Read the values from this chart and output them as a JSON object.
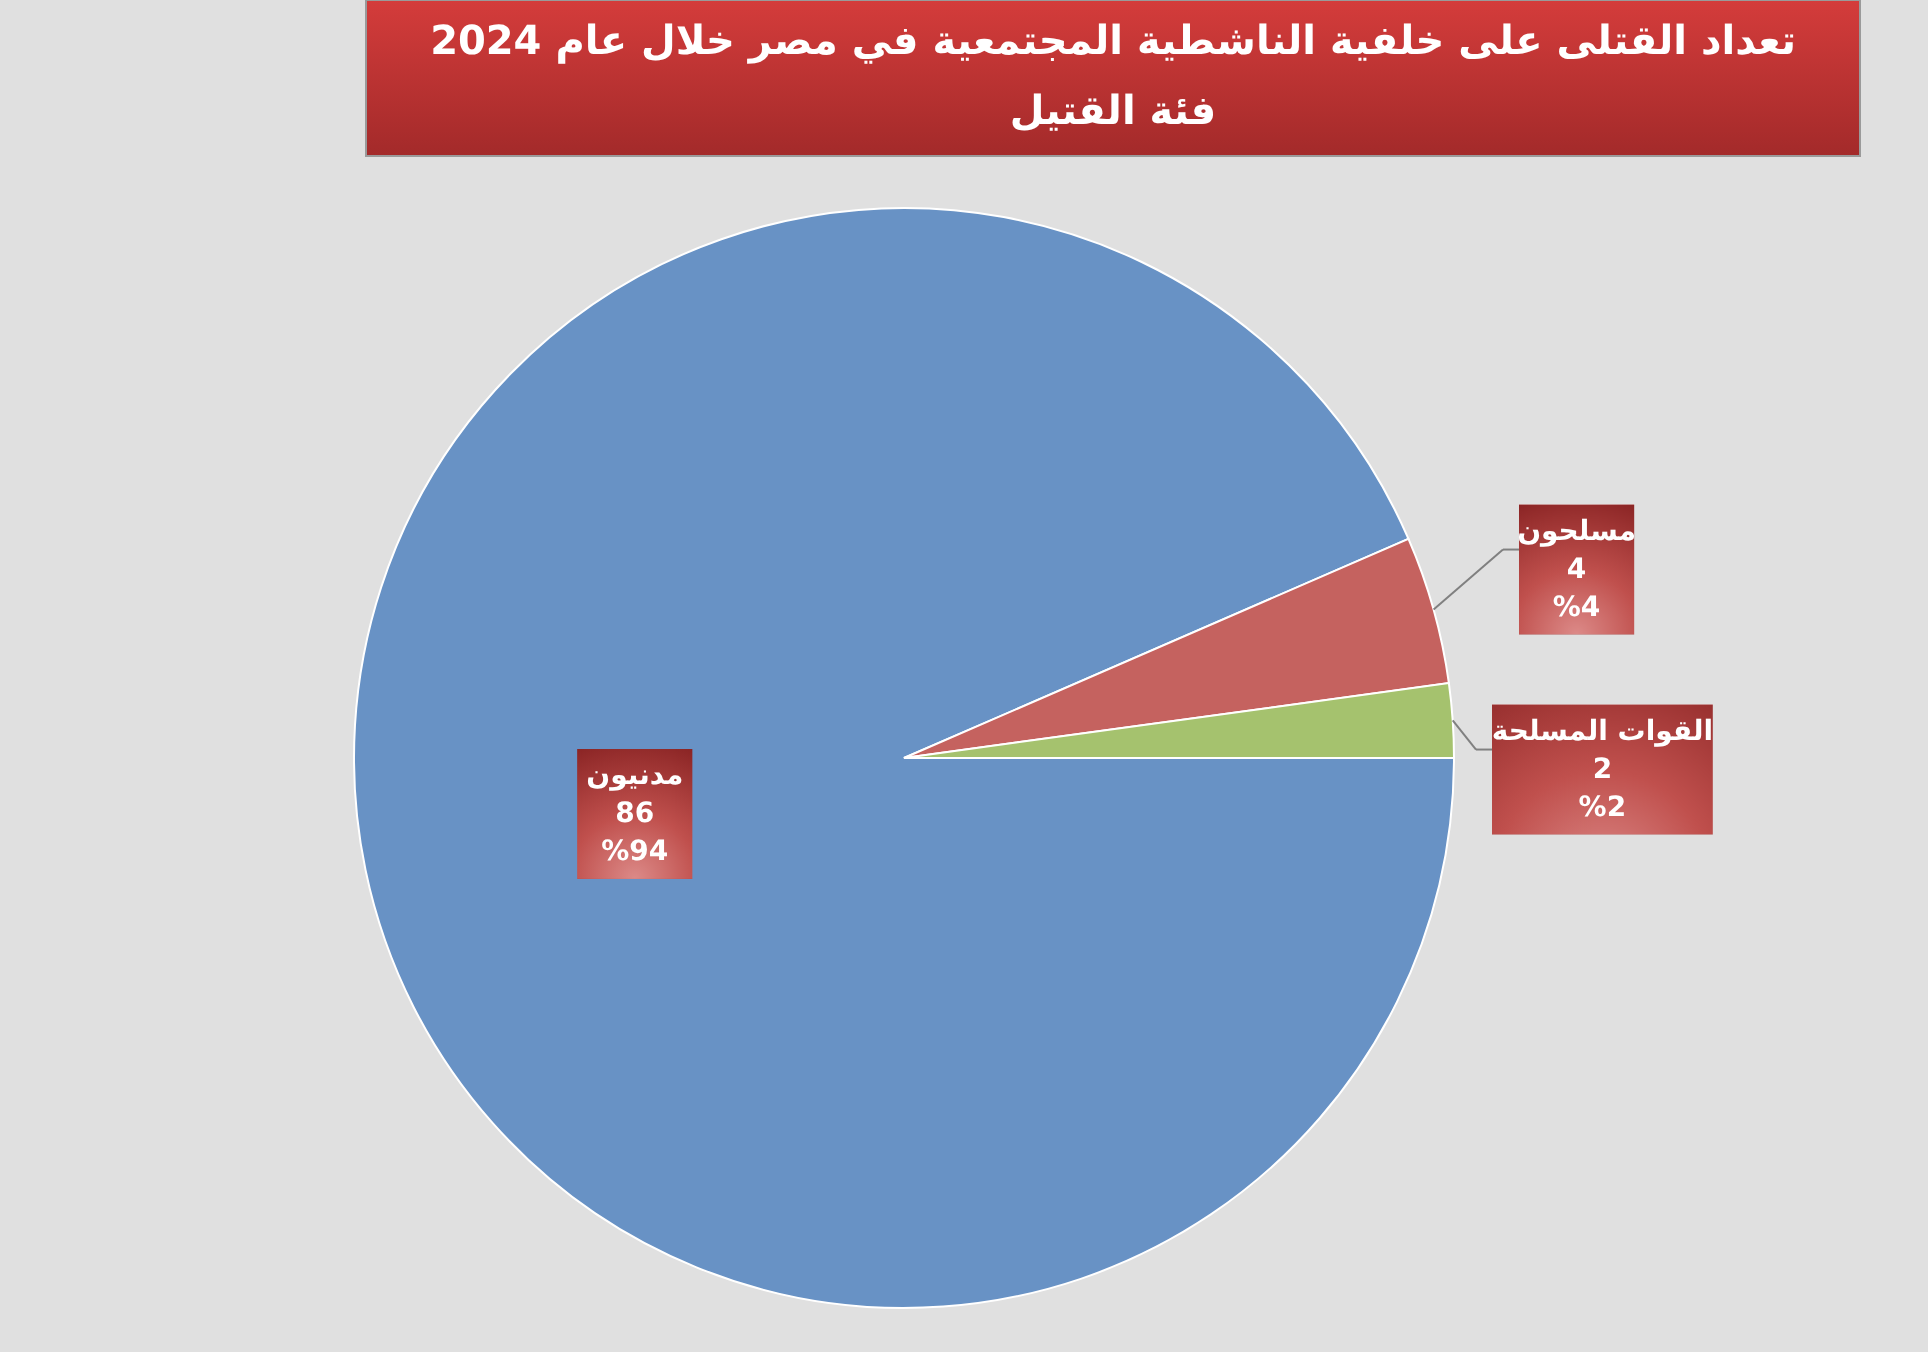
{
  "chart_data": {
    "type": "pie",
    "title": "تعداد القتلى على خلفية الناشطية المجتمعية في مصر خلال عام 2024",
    "subtitle": "فئة القتيل",
    "categories": [
      "مدنيون",
      "مسلحون",
      "القوات المسلحة"
    ],
    "values": [
      86,
      4,
      2
    ],
    "colors": [
      "#6892c5",
      "#c5625f",
      "#a5c26e"
    ],
    "data_labels": true,
    "annotations": [
      {
        "text": "%94",
        "x": "مدنيون"
      },
      {
        "text": "%4",
        "x": "مسلحون"
      },
      {
        "text": "%2",
        "x": "القوات المسلحة"
      }
    ]
  }
}
